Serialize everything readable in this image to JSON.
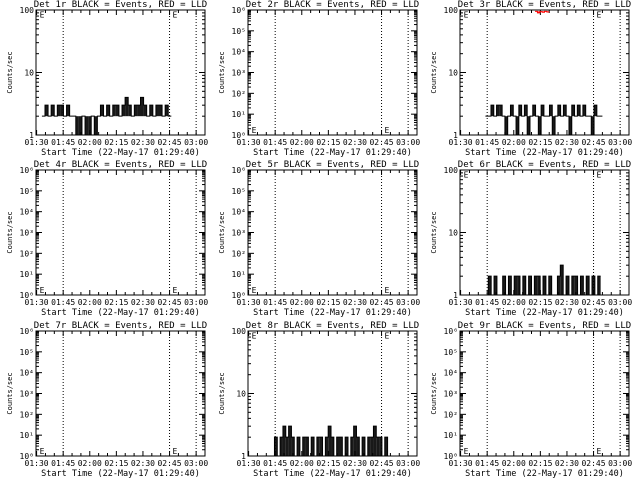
{
  "figure": {
    "xtick_labels": [
      "01:30",
      "01:45",
      "02:00",
      "02:15",
      "02:30",
      "02:45",
      "03:00"
    ],
    "xlabel": "Start Time (22-May-17 01:29:40)",
    "ylabel": "Counts/sec",
    "marker_label": "E",
    "colors": {
      "events": "#000000",
      "lld": "#ff0000",
      "background": "#ffffff"
    }
  },
  "chart_data": [
    {
      "type": "line",
      "title": "Det 1r BLACK = Events, RED = LLD",
      "xlabel": "Start Time (22-May-17 01:29:40)",
      "ylabel": "Counts/sec",
      "yscale": "log",
      "ylim": [
        1,
        100
      ],
      "ytick_labels": [
        "1",
        "10",
        "100"
      ],
      "xlim": [
        "01:29:40",
        "03:05:00"
      ],
      "vlines": [
        "01:45",
        "02:45",
        "03:00"
      ],
      "markers": [
        {
          "label": "E",
          "x": "01:30",
          "y": 85
        },
        {
          "label": "E",
          "x": "02:45",
          "y": 85
        }
      ],
      "series": [
        {
          "name": "Events",
          "color": "#000000",
          "x_range": [
            "01:33",
            "02:46"
          ],
          "baseline": 2,
          "values": [
            2,
            3,
            2,
            3,
            2,
            3,
            3,
            2,
            3,
            2,
            2,
            1,
            1,
            2,
            1,
            1,
            2,
            1,
            2,
            3,
            2,
            3,
            2,
            3,
            3,
            2,
            3,
            4,
            3,
            2,
            3,
            3,
            4,
            3,
            2,
            3,
            2,
            3,
            3,
            2,
            3,
            2
          ]
        }
      ]
    },
    {
      "type": "line",
      "title": "Det 2r BLACK = Events, RED = LLD",
      "xlabel": "Start Time (22-May-17 01:29:40)",
      "ylabel": "Counts/sec",
      "yscale": "log",
      "ylim": [
        1,
        1000000
      ],
      "ytick_labels": [
        "10⁰",
        "10¹",
        "10²",
        "10³",
        "10⁴",
        "10⁵",
        "10⁶"
      ],
      "xlim": [
        "01:29:40",
        "03:05:00"
      ],
      "vlines": [
        "01:45",
        "02:45",
        "03:00"
      ],
      "markers": [
        {
          "label": "E",
          "x": "01:30",
          "y": 1.7
        },
        {
          "label": "E",
          "x": "02:45",
          "y": 1.7
        }
      ],
      "series": []
    },
    {
      "type": "line",
      "title": "Det 3r BLACK = Events, RED = LLD",
      "xlabel": "Start Time (22-May-17 01:29:40)",
      "ylabel": "Counts/sec",
      "yscale": "log",
      "ylim": [
        1,
        100
      ],
      "ytick_labels": [
        "1",
        "10",
        "100"
      ],
      "xlim": [
        "01:29:40",
        "03:05:00"
      ],
      "vlines": [
        "01:45",
        "02:45",
        "03:00"
      ],
      "markers": [
        {
          "label": "E",
          "x": "01:30",
          "y": 85
        },
        {
          "label": "E",
          "x": "02:45",
          "y": 85
        }
      ],
      "series": [
        {
          "name": "Events",
          "color": "#000000",
          "x_range": [
            "01:44",
            "02:50"
          ],
          "baseline": 2,
          "values": [
            2,
            2,
            3,
            2,
            3,
            3,
            2,
            1,
            2,
            3,
            2,
            1,
            3,
            2,
            3,
            1,
            2,
            3,
            2,
            1,
            3,
            2,
            2,
            3,
            1,
            2,
            3,
            2,
            3,
            2,
            1,
            3,
            2,
            3,
            2,
            3,
            2,
            2,
            1,
            3,
            2,
            2
          ]
        },
        {
          "name": "LLD",
          "color": "#ff0000",
          "x_range": [
            "02:12",
            "02:20"
          ],
          "baseline": 95,
          "values": [
            95,
            90,
            94,
            92,
            95,
            93
          ]
        }
      ]
    },
    {
      "type": "line",
      "title": "Det 4r BLACK = Events, RED = LLD",
      "xlabel": "Start Time (22-May-17 01:29:40)",
      "ylabel": "Counts/sec",
      "yscale": "log",
      "ylim": [
        1,
        1000000
      ],
      "ytick_labels": [
        "10⁰",
        "10¹",
        "10²",
        "10³",
        "10⁴",
        "10⁵",
        "10⁶"
      ],
      "xlim": [
        "01:29:40",
        "03:05:00"
      ],
      "vlines": [
        "01:45",
        "02:45",
        "03:00"
      ],
      "markers": [
        {
          "label": "E",
          "x": "01:30",
          "y": 1.7
        },
        {
          "label": "E",
          "x": "02:45",
          "y": 1.7
        }
      ],
      "series": []
    },
    {
      "type": "line",
      "title": "Det 5r BLACK = Events, RED = LLD",
      "xlabel": "Start Time (22-May-17 01:29:40)",
      "ylabel": "Counts/sec",
      "yscale": "log",
      "ylim": [
        1,
        1000000
      ],
      "ytick_labels": [
        "10⁰",
        "10¹",
        "10²",
        "10³",
        "10⁴",
        "10⁵",
        "10⁶"
      ],
      "xlim": [
        "01:29:40",
        "03:05:00"
      ],
      "vlines": [
        "01:45",
        "02:45",
        "03:00"
      ],
      "markers": [
        {
          "label": "E",
          "x": "01:30",
          "y": 1.7
        },
        {
          "label": "E",
          "x": "02:45",
          "y": 1.7
        }
      ],
      "series": []
    },
    {
      "type": "line",
      "title": "Det 6r BLACK = Events, RED = LLD",
      "xlabel": "Start Time (22-May-17 01:29:40)",
      "ylabel": "Counts/sec",
      "yscale": "log",
      "ylim": [
        1,
        100
      ],
      "ytick_labels": [
        "1",
        "10",
        "100"
      ],
      "xlim": [
        "01:29:40",
        "03:05:00"
      ],
      "vlines": [
        "01:45",
        "02:45",
        "03:00"
      ],
      "markers": [
        {
          "label": "E",
          "x": "01:30",
          "y": 85
        },
        {
          "label": "E",
          "x": "02:45",
          "y": 85
        }
      ],
      "series": [
        {
          "name": "Events",
          "color": "#000000",
          "x_range": [
            "01:44",
            "02:49"
          ],
          "baseline": 1,
          "values": [
            1,
            2,
            1,
            2,
            1,
            1,
            2,
            1,
            2,
            1,
            2,
            2,
            1,
            2,
            1,
            2,
            1,
            2,
            2,
            1,
            2,
            1,
            2,
            1,
            1,
            2,
            3,
            1,
            2,
            1,
            2,
            2,
            1,
            2,
            1,
            2,
            1,
            2,
            1,
            2
          ]
        }
      ]
    },
    {
      "type": "line",
      "title": "Det 7r BLACK = Events, RED = LLD",
      "xlabel": "Start Time (22-May-17 01:29:40)",
      "ylabel": "Counts/sec",
      "yscale": "log",
      "ylim": [
        1,
        1000000
      ],
      "ytick_labels": [
        "10⁰",
        "10¹",
        "10²",
        "10³",
        "10⁴",
        "10⁵",
        "10⁶"
      ],
      "xlim": [
        "01:29:40",
        "03:05:00"
      ],
      "vlines": [
        "01:45",
        "02:45",
        "03:00"
      ],
      "markers": [
        {
          "label": "E",
          "x": "01:30",
          "y": 1.7
        },
        {
          "label": "E",
          "x": "02:45",
          "y": 1.7
        }
      ],
      "series": []
    },
    {
      "type": "line",
      "title": "Det 8r BLACK = Events, RED = LLD",
      "xlabel": "Start Time (22-May-17 01:29:40)",
      "ylabel": "Counts/sec",
      "yscale": "log",
      "ylim": [
        1,
        100
      ],
      "ytick_labels": [
        "1",
        "10",
        "100"
      ],
      "xlim": [
        "01:29:40",
        "03:05:00"
      ],
      "vlines": [
        "01:45",
        "02:45",
        "03:00"
      ],
      "markers": [
        {
          "label": "E",
          "x": "01:30",
          "y": 85
        },
        {
          "label": "E",
          "x": "02:45",
          "y": 85
        }
      ],
      "series": [
        {
          "name": "Events",
          "color": "#000000",
          "x_range": [
            "01:43",
            "02:50"
          ],
          "baseline": 1,
          "values": [
            1,
            2,
            1,
            2,
            3,
            2,
            3,
            2,
            1,
            2,
            1,
            2,
            2,
            1,
            2,
            1,
            2,
            2,
            1,
            2,
            3,
            2,
            1,
            2,
            2,
            1,
            2,
            1,
            2,
            3,
            2,
            1,
            2,
            1,
            2,
            2,
            3,
            2,
            2,
            1,
            2,
            1
          ]
        }
      ]
    },
    {
      "type": "line",
      "title": "Det 9r BLACK = Events, RED = LLD",
      "xlabel": "Start Time (22-May-17 01:29:40)",
      "ylabel": "Counts/sec",
      "yscale": "log",
      "ylim": [
        1,
        1000000
      ],
      "ytick_labels": [
        "10⁰",
        "10¹",
        "10²",
        "10³",
        "10⁴",
        "10⁵",
        "10⁶"
      ],
      "xlim": [
        "01:29:40",
        "03:05:00"
      ],
      "vlines": [
        "01:45",
        "02:45",
        "03:00"
      ],
      "markers": [
        {
          "label": "E",
          "x": "01:30",
          "y": 1.7
        },
        {
          "label": "E",
          "x": "02:45",
          "y": 1.7
        }
      ],
      "series": []
    }
  ]
}
